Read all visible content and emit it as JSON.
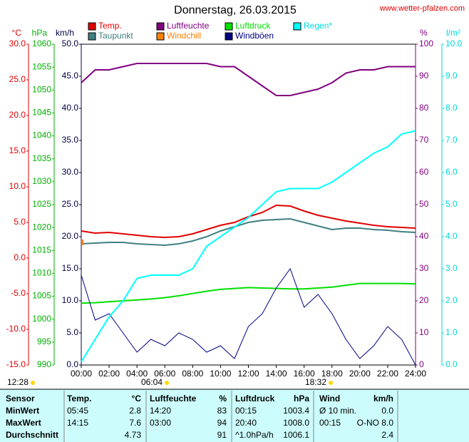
{
  "chart_data": {
    "type": "line",
    "title": "Donnerstag, 26.03.2015",
    "source": "www.wetter-pfalzen.com",
    "xlim": [
      0,
      24
    ],
    "xticks": [
      {
        "value": 0,
        "label": "00:00"
      },
      {
        "value": 2,
        "label": "02:00"
      },
      {
        "value": 4,
        "label": "04:00"
      },
      {
        "value": 6,
        "label": "06:00"
      },
      {
        "value": 8,
        "label": "08:00"
      },
      {
        "value": 10,
        "label": "10:00"
      },
      {
        "value": 12,
        "label": "12:00"
      },
      {
        "value": 14,
        "label": "14:00"
      },
      {
        "value": 16,
        "label": "16:00"
      },
      {
        "value": 18,
        "label": "18:00"
      },
      {
        "value": 20,
        "label": "20:00"
      },
      {
        "value": 22,
        "label": "22:00"
      },
      {
        "value": 24,
        "label": "24:00"
      }
    ],
    "x": [
      0,
      1,
      2,
      3,
      4,
      5,
      6,
      7,
      8,
      9,
      10,
      11,
      12,
      13,
      14,
      15,
      16,
      17,
      18,
      19,
      20,
      21,
      22,
      23,
      24
    ],
    "axes": [
      {
        "id": "temp",
        "label": "°C",
        "color": "#e00000",
        "side": "left",
        "lim": [
          -15,
          30
        ],
        "ticks": [
          {
            "value": 30,
            "label": "30.0"
          },
          {
            "value": 25,
            "label": "25.0"
          },
          {
            "value": 20,
            "label": "20.0"
          },
          {
            "value": 15,
            "label": "15.0"
          },
          {
            "value": 10,
            "label": "10.0"
          },
          {
            "value": 5,
            "label": "5.0"
          },
          {
            "value": 0,
            "label": "0.0"
          },
          {
            "value": -5,
            "label": "-5.0"
          },
          {
            "value": -10,
            "label": "-10.0"
          },
          {
            "value": -15,
            "label": "-15.0"
          }
        ]
      },
      {
        "id": "hpa",
        "label": "hPa",
        "color": "#00b000",
        "side": "left",
        "lim": [
          990,
          1060
        ],
        "ticks": [
          1060,
          1055,
          1050,
          1045,
          1040,
          1035,
          1030,
          1025,
          1020,
          1015,
          1010,
          1005,
          1000,
          995,
          990
        ]
      },
      {
        "id": "kmh",
        "label": "km/h",
        "color": "#000040",
        "side": "left",
        "lim": [
          0,
          50
        ],
        "ticks": [
          {
            "value": 50,
            "label": "50.0"
          },
          {
            "value": 45,
            "label": "45.0"
          },
          {
            "value": 40,
            "label": "40.0"
          },
          {
            "value": 35,
            "label": "35.0"
          },
          {
            "value": 30,
            "label": "30.0"
          },
          {
            "value": 25,
            "label": "25.0"
          },
          {
            "value": 20,
            "label": "20.0"
          },
          {
            "value": 15,
            "label": "15.0"
          },
          {
            "value": 10,
            "label": "10.0"
          },
          {
            "value": 5,
            "label": "5.0"
          },
          {
            "value": 0,
            "label": "0.0"
          }
        ]
      },
      {
        "id": "pct",
        "label": "%",
        "color": "#800080",
        "side": "right",
        "lim": [
          0,
          100
        ],
        "ticks": [
          100,
          90,
          80,
          70,
          60,
          50,
          40,
          30,
          20,
          10,
          0
        ]
      },
      {
        "id": "lm2",
        "label": "l/m²",
        "color": "#00d8d8",
        "side": "right",
        "lim": [
          0,
          10
        ],
        "ticks": [
          {
            "value": 10,
            "label": "10.0"
          },
          {
            "value": 9,
            "label": "9.0"
          },
          {
            "value": 8,
            "label": "8.0"
          },
          {
            "value": 7,
            "label": "7.0"
          },
          {
            "value": 6,
            "label": "6.0"
          },
          {
            "value": 5,
            "label": "5.0"
          },
          {
            "value": 4,
            "label": "4.0"
          },
          {
            "value": 3,
            "label": "3.0"
          },
          {
            "value": 2,
            "label": "2.0"
          },
          {
            "value": 1,
            "label": "1.0"
          },
          {
            "value": 0,
            "label": "0.0"
          }
        ]
      }
    ],
    "series": [
      {
        "name": "Temp.",
        "color": "#e00000",
        "axis": "temp",
        "values": [
          3.8,
          3.5,
          3.6,
          3.4,
          3.2,
          3.0,
          2.9,
          3.0,
          3.4,
          4.0,
          4.6,
          5.0,
          5.8,
          6.4,
          7.4,
          7.3,
          6.6,
          6.0,
          5.6,
          5.2,
          4.9,
          4.6,
          4.4,
          4.3,
          4.2
        ]
      },
      {
        "name": "Taupunkt",
        "color": "#408080",
        "axis": "temp",
        "values": [
          2.0,
          2.1,
          2.2,
          2.2,
          2.0,
          1.9,
          1.8,
          2.0,
          2.4,
          3.0,
          3.8,
          4.4,
          5.0,
          5.3,
          5.4,
          5.5,
          5.0,
          4.5,
          4.0,
          4.2,
          4.2,
          4.0,
          3.9,
          3.7,
          3.6
        ]
      },
      {
        "name": "Luftfeuchte",
        "color": "#800080",
        "axis": "pct",
        "values": [
          88,
          92,
          92,
          93,
          94,
          94,
          94,
          94,
          94,
          94,
          93,
          93,
          90,
          87,
          84,
          84,
          85,
          86,
          88,
          91,
          92,
          92,
          93,
          93,
          93
        ]
      },
      {
        "name": "Windchill",
        "color": "#ff8000",
        "axis": "temp",
        "values": [
          2.0,
          null,
          null,
          null,
          null,
          null,
          null,
          null,
          null,
          null,
          null,
          null,
          null,
          null,
          null,
          null,
          null,
          null,
          null,
          null,
          null,
          null,
          null,
          null,
          null
        ]
      },
      {
        "name": "Luftdruck",
        "color": "#00e000",
        "axis": "hpa",
        "values": [
          1003.5,
          1003.6,
          1003.8,
          1004.0,
          1004.2,
          1004.4,
          1004.7,
          1005.1,
          1005.6,
          1006.1,
          1006.5,
          1006.7,
          1006.9,
          1006.8,
          1006.7,
          1006.6,
          1006.6,
          1006.8,
          1007.0,
          1007.4,
          1007.8,
          1007.8,
          1007.8,
          1007.8,
          1007.7
        ]
      },
      {
        "name": "Windböen",
        "color": "#000080",
        "axis": "kmh",
        "values": [
          14,
          7,
          8,
          5,
          2,
          4,
          3,
          5,
          4,
          2,
          3,
          1,
          6,
          8,
          12,
          15,
          9,
          11,
          8,
          4,
          1,
          3,
          6,
          4,
          0
        ]
      },
      {
        "name": "Regen*",
        "color": "#00ffff",
        "axis": "lm2",
        "values": [
          0.1,
          0.8,
          1.5,
          2.0,
          2.7,
          2.8,
          2.8,
          2.8,
          3.0,
          3.7,
          4.0,
          4.3,
          4.6,
          5.0,
          5.4,
          5.5,
          5.5,
          5.5,
          5.7,
          6.0,
          6.3,
          6.6,
          6.8,
          7.2,
          7.3
        ]
      }
    ],
    "annotations": [
      "12:28",
      "06:04",
      "18:32"
    ]
  },
  "table": {
    "header": [
      "Sensor",
      "Temp.",
      "°C",
      "Luftfeuchte",
      "%",
      "Luftdruck",
      "hPa",
      "Wind",
      "km/h"
    ],
    "rows": [
      [
        "MinWert",
        "05:45",
        "2.8",
        "14:20",
        "83",
        "00:15",
        "1003.4",
        "Ø 10 min.",
        "0.0"
      ],
      [
        "MaxWert",
        "14:15",
        "7.6",
        "03:00",
        "94",
        "20:40",
        "1008.0",
        "00:15",
        "O-NO 8.0"
      ],
      [
        "Durchschnitt",
        "",
        "4.73",
        "",
        "91",
        "^1.0hPa/h",
        "1006.1",
        "",
        "2.4"
      ]
    ]
  }
}
